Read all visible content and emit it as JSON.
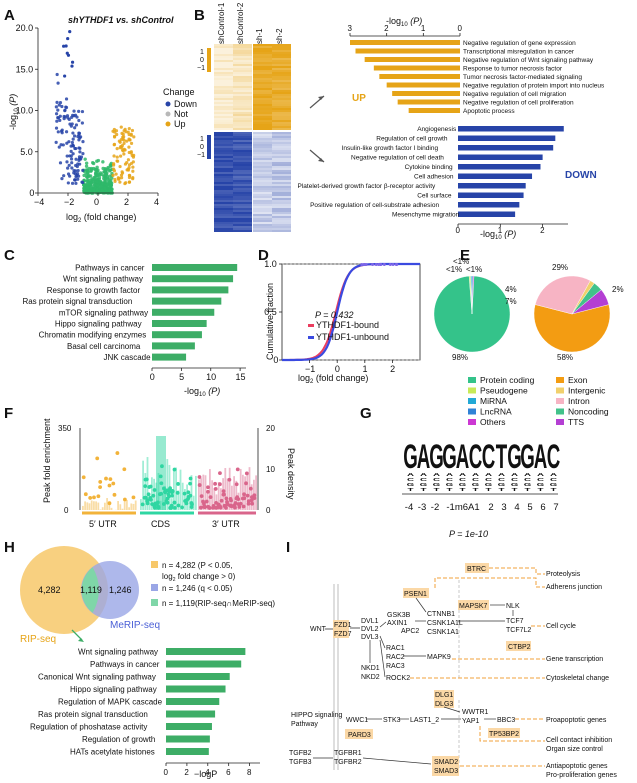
{
  "colors": {
    "up_gold": "#e6a417",
    "down_blue": "#2744a8",
    "not_green": "#2fb96a",
    "bar_green": "#3dad66",
    "cds_teal": "#2fd6a2",
    "utr3_pink": "#d9658b",
    "ripseq_orange": "#f7c86a",
    "meripseq_blue": "#9aa6e6",
    "overlap_teal": "#7fd6a8",
    "pathway_orange": "#f2a13b"
  },
  "panel_a": {
    "letter": "A",
    "title": "shYTHDF1 vs. shControl",
    "ylabel_main": "-log",
    "ylabel_sub": "10",
    "ylabel_rest": " (P)",
    "xlabel_main": "log",
    "xlabel_sub": "2",
    "xlabel_rest": " (fold change)",
    "legend_title": "Change",
    "legend": [
      "Down",
      "Not",
      "Up"
    ],
    "chart_data": {
      "type": "scatter",
      "xlim": [
        -4,
        4
      ],
      "ylim": [
        0,
        20
      ],
      "xticks": [
        "−4",
        "−2",
        "0",
        "2",
        "4"
      ],
      "yticks": [
        "0",
        "5.0",
        "10.0",
        "15.0",
        "20.0"
      ]
    }
  },
  "panel_b": {
    "letter": "B",
    "columns": [
      "shControl-1",
      "shControl-2",
      "sh-1",
      "sh-2"
    ],
    "scale_labels": [
      "1",
      "0",
      "−1"
    ],
    "up_label": "UP",
    "down_label": "DOWN",
    "axis_top": "-log",
    "axis_sub": "10",
    "axis_rest": " (P)",
    "chart_data": {
      "type": "bar",
      "up_xticks": [
        "3",
        "2",
        "1",
        "0"
      ],
      "down_xticks": [
        "0",
        "1",
        "2"
      ],
      "up": {
        "categories": [
          "Negative regulation of gene expression",
          "Transcriptional misregulation in cancer",
          "Negative regulation of Wnt signaling pathway",
          "Response to tumor necrosis factor",
          "Tumor necrosis factor-mediated signaling",
          "Negative regulation of protein import into nucleus",
          "Negative regulation of cell migration",
          "Negative regulation of cell proliferation",
          "Apoptotic process"
        ],
        "values": [
          3.0,
          2.85,
          2.6,
          2.35,
          2.2,
          2.0,
          1.85,
          1.7,
          1.4
        ]
      },
      "down": {
        "categories": [
          "Angiogenesis",
          "Regulation of cell growth",
          "Insulin-like growth factor I binding",
          "Negative regulation of cell death",
          "Cytokine binding",
          "Cell adhesion",
          "Platelet-derived growth factor β-receptor activity",
          "Cell surface",
          "Positive regulation of cell-substrate adhesion",
          "Mesenchyme migration"
        ],
        "values": [
          2.5,
          2.3,
          2.25,
          2.0,
          1.95,
          1.75,
          1.6,
          1.55,
          1.45,
          1.35
        ]
      }
    }
  },
  "panel_c": {
    "letter": "C",
    "xlabel": "-log",
    "xsub": "10",
    "xrest": " (P)",
    "chart_data": {
      "type": "bar",
      "categories": [
        "Pathways in cancer",
        "Wnt signaling pathway",
        "Response to growth factor",
        "Ras protein signal transduction",
        "mTOR signaling pathway",
        "Hippo signaling pathway",
        "Chromatin modifying enzymes",
        "Basal cell carcinoma",
        "JNK cascade"
      ],
      "values": [
        14.5,
        13.8,
        13.0,
        11.8,
        10.6,
        9.3,
        8.5,
        7.3,
        5.8
      ],
      "xlim": [
        0,
        16
      ],
      "xticks": [
        "0",
        "5",
        "10",
        "15"
      ]
    }
  },
  "panel_d": {
    "letter": "D",
    "ylabel": "Cumulative fraction",
    "xlabel_main": "log",
    "xlabel_sub": "2",
    "xlabel_rest": " (fold change)",
    "pvalue": "P = 0.432",
    "legend": [
      "YTHDF1-bound",
      "YTHDF1-unbound"
    ],
    "legend_colors": [
      "#ea3d5f",
      "#3a4ae0"
    ],
    "chart_data": {
      "type": "line",
      "xlim": [
        -2,
        3
      ],
      "ylim": [
        0,
        1
      ],
      "xticks": [
        "−1",
        "0",
        "1",
        "2"
      ],
      "yticks": [
        "0",
        "0.5",
        "1.0"
      ]
    }
  },
  "panel_e": {
    "letter": "E",
    "left_labels": [
      "<1%",
      "<1%",
      "<1%",
      "98%"
    ],
    "right_labels": [
      "29%",
      "2%",
      "4%",
      "7%",
      "58%"
    ],
    "legend_left": [
      {
        "label": "Protein coding",
        "color": "#34c38a"
      },
      {
        "label": "Pseudogene",
        "color": "#c8ea58"
      },
      {
        "label": "MiRNA",
        "color": "#22a9d6"
      },
      {
        "label": "LncRNA",
        "color": "#2f82d6"
      },
      {
        "label": "Others",
        "color": "#cc38d3"
      }
    ],
    "legend_right": [
      {
        "label": "Exon",
        "color": "#f39c12"
      },
      {
        "label": "Intergenic",
        "color": "#f1d06c"
      },
      {
        "label": "Intron",
        "color": "#f7b4c4"
      },
      {
        "label": "Noncoding",
        "color": "#42c28a"
      },
      {
        "label": "TTS",
        "color": "#b43fd3"
      }
    ],
    "chart_data": [
      {
        "type": "pie",
        "labels": [
          "Protein coding",
          "Pseudogene",
          "MiRNA",
          "LncRNA",
          "Others"
        ],
        "values": [
          98,
          0.6,
          0.5,
          0.5,
          0.4
        ]
      },
      {
        "type": "pie",
        "labels": [
          "Exon",
          "Intron",
          "Intergenic",
          "Noncoding",
          "TTS"
        ],
        "values": [
          58,
          29,
          2,
          4,
          7
        ]
      }
    ]
  },
  "panel_f": {
    "letter": "F",
    "ylabel_left": "Peak fold enrichment",
    "ylabel_right": "Peak density",
    "categories": [
      "5′ UTR",
      "CDS",
      "3′ UTR"
    ],
    "chart_data": {
      "type": "scatter",
      "ylim_left": [
        0,
        350
      ],
      "ylim_right": [
        0,
        20
      ],
      "yticks_left": [
        "350",
        "0"
      ],
      "yticks_right": [
        "20",
        "10",
        "0"
      ]
    }
  },
  "panel_g": {
    "letter": "G",
    "motif": [
      {
        "letter": "G",
        "color": "#f2a51f"
      },
      {
        "letter": "A",
        "color": "#2fa24b"
      },
      {
        "letter": "G",
        "color": "#f2a51f"
      },
      {
        "letter": "G",
        "color": "#f2a51f"
      },
      {
        "letter": "A",
        "color": "#2fa24b"
      },
      {
        "letter": "C",
        "color": "#2a5bd6"
      },
      {
        "letter": "C",
        "color": "#2a5bd6"
      },
      {
        "letter": "T",
        "color": "#e03a2e"
      },
      {
        "letter": "G",
        "color": "#f2a51f"
      },
      {
        "letter": "G",
        "color": "#f2a51f"
      },
      {
        "letter": "A",
        "color": "#2fa24b"
      },
      {
        "letter": "C",
        "color": "#2a5bd6"
      }
    ],
    "positions": [
      "-4",
      "-3",
      "-2",
      "-1m6A1",
      "2",
      "3",
      "4",
      "5",
      "6",
      "7"
    ],
    "pvalue": "P = 1e-10"
  },
  "panel_h": {
    "letter": "H",
    "rip_count": "4,282",
    "overlap_count": "1,119",
    "merip_count": "1,246",
    "rip_label": "RIP-seq",
    "merip_label": "MeRIP-seq",
    "legend": [
      "n = 4,282 (P < 0.05,",
      "log",
      " fold change > 0)",
      "n = 1,246 (q < 0.05)",
      "n = 1,119(RIP-seq∩MeRIP-seq)"
    ],
    "xlabel": "−logP",
    "chart_data": {
      "type": "bar",
      "categories": [
        "Wnt signaling pathway",
        "Pathways in cancer",
        "Canonical Wnt signaling pathway",
        "Hippo signaling pathway",
        "Regulation of MAPK cascade",
        "Ras protein signal transduction",
        "Regulation of phoshatase activity",
        "Regulation of growth",
        "HATs acetylate histones"
      ],
      "values": [
        7.6,
        7.2,
        6.1,
        5.7,
        5.1,
        4.7,
        4.4,
        4.2,
        4.1
      ],
      "xlim": [
        0,
        9
      ],
      "xticks": [
        "0",
        "2",
        "4",
        "6",
        "8"
      ]
    }
  },
  "panel_i": {
    "letter": "I",
    "wnt": "WNT",
    "fzd1": "FZD1",
    "fzd7": "FZD7",
    "dvl": [
      "DVL1",
      "DVL2",
      "DVL3"
    ],
    "gsk": [
      "GSK3B",
      "AXIN1",
      "APC2"
    ],
    "psen1": "PSEN1",
    "btrc": "BTRC",
    "ctnnb": [
      "CTNNB1",
      "CSNK1A1L",
      "CSNK1A1"
    ],
    "mapsk7": "MAPSK7",
    "nlk": "NLK",
    "tcf": [
      "TCF7",
      "TCF7L2"
    ],
    "ctbp2": "CTBP2",
    "rac": [
      "RAC1",
      "RAC2",
      "RAC3"
    ],
    "mapk9": "MAPK9",
    "nkd": [
      "NKD1",
      "NKD2"
    ],
    "rock2": "ROCK2",
    "outputs_wnt": [
      "Proteolysis",
      "Adherens junction",
      "Cell cycle",
      "Gene transcription",
      "Cytoskeletal change"
    ],
    "hippo": [
      "HIPPO signaling",
      "Pathway"
    ],
    "dlg": [
      "DLG1",
      "DLG3"
    ],
    "wwc1": "WWC1",
    "pard3": "PARD3",
    "stk3": "STK3",
    "last": "LAST1_2",
    "wwtr1": "WWTR1",
    "yap1": "YAP1",
    "bbc3": "BBC3",
    "tp53bp2": "TP53BP2",
    "outputs_hippo": [
      "Proapoptotic genes",
      "Cell contact inhibition",
      "Organ size control",
      "Antiapoptotic genes",
      "Pro-proliferation genes"
    ],
    "tgfb": [
      "TGFB2",
      "TGFB3"
    ],
    "tgfbr": [
      "TGFBR1",
      "TGFBR2"
    ],
    "smad": [
      "SMAD2",
      "SMAD3"
    ]
  }
}
